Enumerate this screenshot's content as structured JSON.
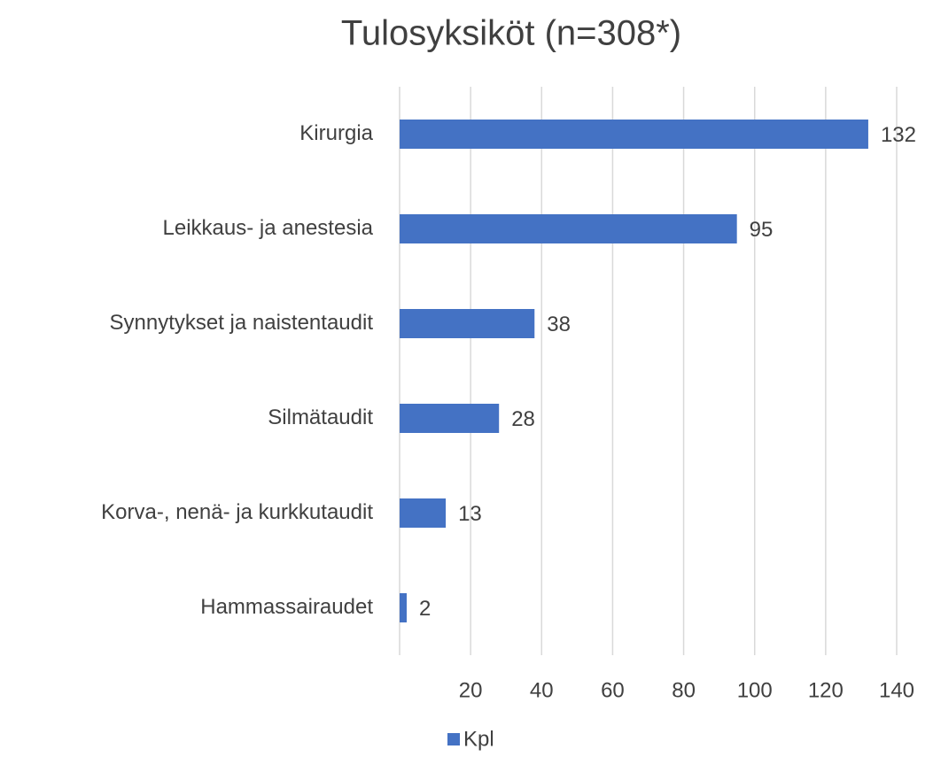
{
  "chart_data": {
    "type": "bar",
    "orientation": "horizontal",
    "title": "Tulosyksiköt (n=308*)",
    "categories": [
      "Kirurgia",
      "Leikkaus- ja anestesia",
      "Synnytykset ja naistentaudit",
      "Silmätaudit",
      "Korva-, nenä- ja kurkkutaudit",
      "Hammassairaudet"
    ],
    "series": [
      {
        "name": "Kpl",
        "color": "#4472c4",
        "values": [
          132,
          95,
          38,
          28,
          13,
          2
        ]
      }
    ],
    "xlim": [
      0,
      140
    ],
    "xticks": [
      20,
      40,
      60,
      80,
      100,
      120,
      140
    ],
    "grid": true,
    "legend": "bottom"
  }
}
